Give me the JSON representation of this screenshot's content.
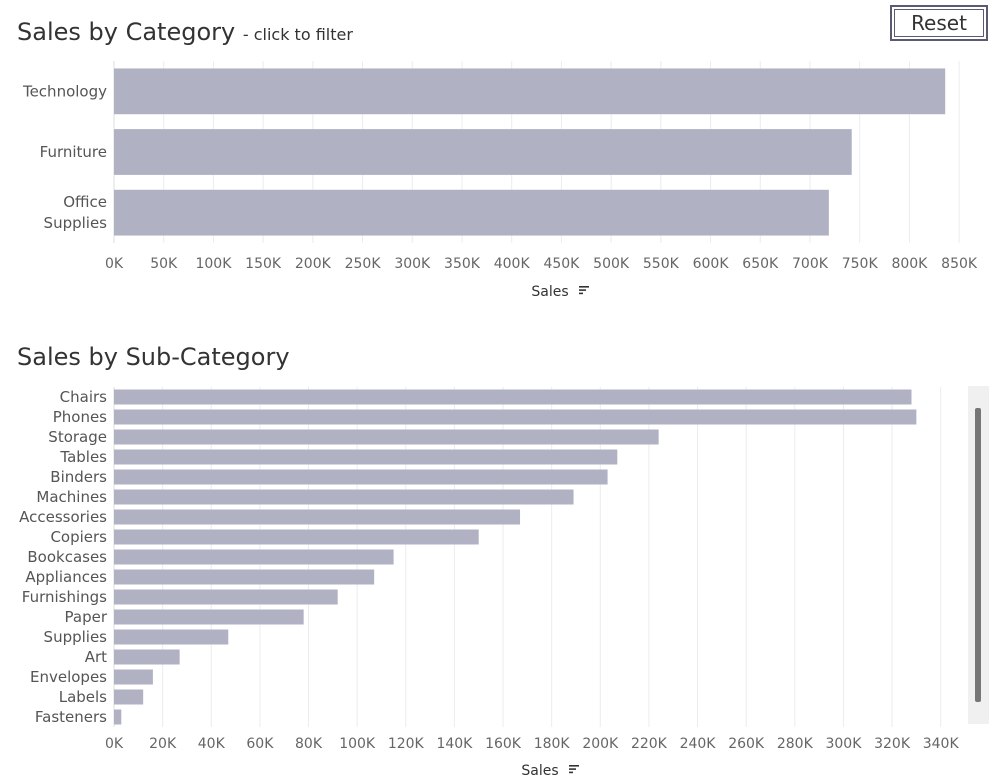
{
  "reset_label": "Reset",
  "colors": {
    "bar": "#b0b2c4",
    "grid": "#ececec",
    "axis_text": "#666666",
    "label_text": "#555555"
  },
  "chart_data": [
    {
      "type": "bar",
      "orientation": "horizontal",
      "title": "Sales by Category",
      "subtitle": "- click to filter",
      "xlabel": "Sales",
      "categories": [
        "Technology",
        "Furniture",
        "Office Supplies"
      ],
      "category_lines": [
        [
          "Technology"
        ],
        [
          "Furniture"
        ],
        [
          "Office",
          "Supplies"
        ]
      ],
      "values": [
        836000,
        742000,
        719000
      ],
      "xlim": [
        0,
        870000
      ],
      "ticks": [
        0,
        50000,
        100000,
        150000,
        200000,
        250000,
        300000,
        350000,
        400000,
        450000,
        500000,
        550000,
        600000,
        650000,
        700000,
        750000,
        800000,
        850000
      ],
      "tick_labels": [
        "0K",
        "50K",
        "100K",
        "150K",
        "200K",
        "250K",
        "300K",
        "350K",
        "400K",
        "450K",
        "500K",
        "550K",
        "600K",
        "650K",
        "700K",
        "750K",
        "800K",
        "850K"
      ],
      "grid": true
    },
    {
      "type": "bar",
      "orientation": "horizontal",
      "title": "Sales by Sub-Category",
      "xlabel": "Sales",
      "categories": [
        "Chairs",
        "Phones",
        "Storage",
        "Tables",
        "Binders",
        "Machines",
        "Accessories",
        "Copiers",
        "Bookcases",
        "Appliances",
        "Furnishings",
        "Paper",
        "Supplies",
        "Art",
        "Envelopes",
        "Labels",
        "Fasteners"
      ],
      "values": [
        328000,
        330000,
        224000,
        207000,
        203000,
        189000,
        167000,
        150000,
        115000,
        107000,
        92000,
        78000,
        47000,
        27000,
        16000,
        12000,
        3000
      ],
      "xlim": [
        0,
        350000
      ],
      "ticks": [
        0,
        20000,
        40000,
        60000,
        80000,
        100000,
        120000,
        140000,
        160000,
        180000,
        200000,
        220000,
        240000,
        260000,
        280000,
        300000,
        320000,
        340000
      ],
      "tick_labels": [
        "0K",
        "20K",
        "40K",
        "60K",
        "80K",
        "100K",
        "120K",
        "140K",
        "160K",
        "180K",
        "200K",
        "220K",
        "240K",
        "260K",
        "280K",
        "300K",
        "320K",
        "340K"
      ],
      "grid": true
    }
  ]
}
